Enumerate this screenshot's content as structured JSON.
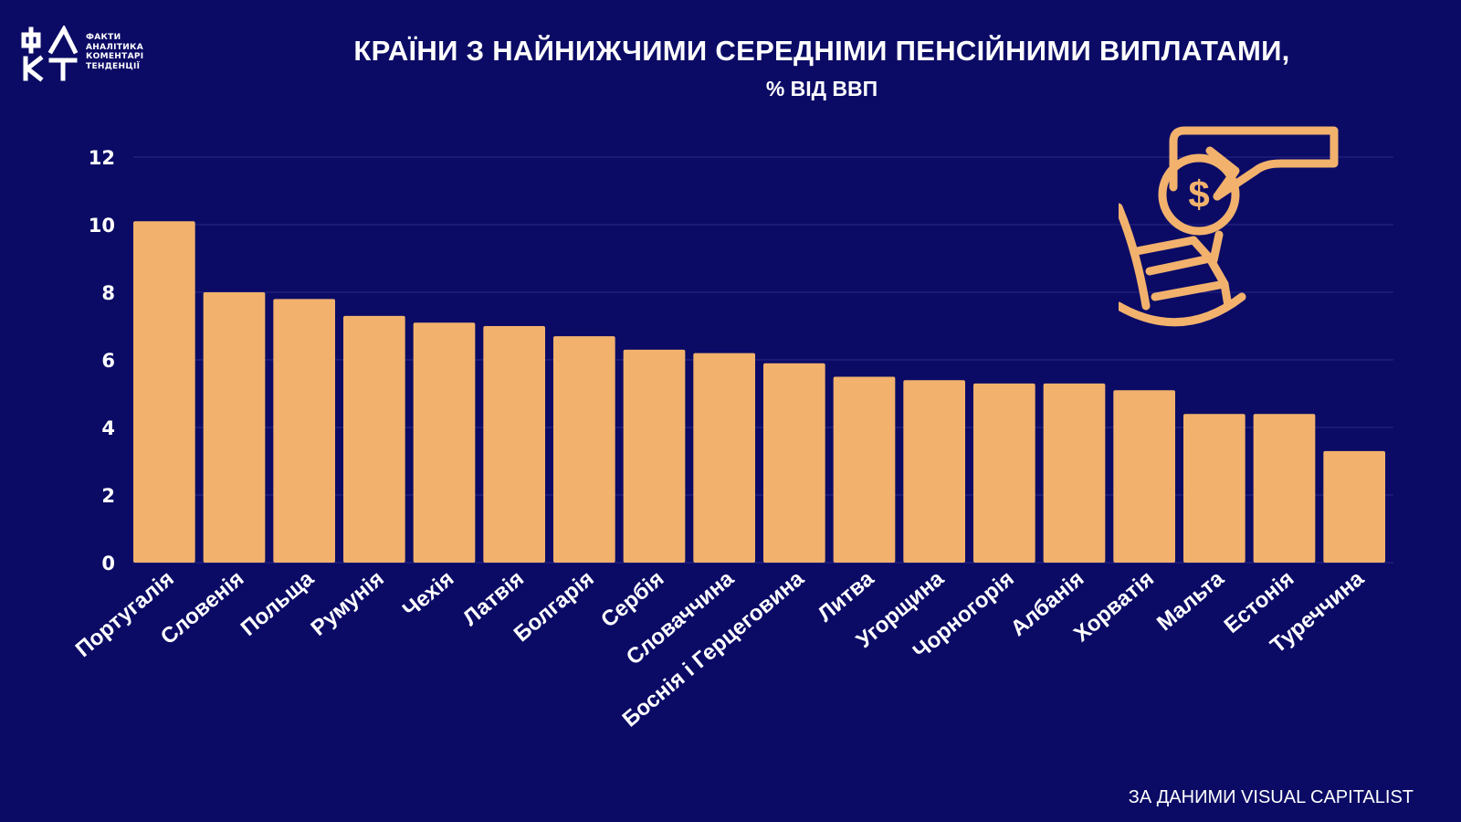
{
  "logo": {
    "mark": "ФАКТ",
    "words": [
      "ФАКТИ",
      "АНАЛІТИКА",
      "КОМЕНТАРІ",
      "ТЕНДЕНЦІЇ"
    ]
  },
  "header": {
    "title": "КРАЇНИ З НАЙНИЖЧИМИ СЕРЕДНІМИ ПЕНСІЙНИМИ ВИПЛАТАМИ,",
    "subtitle": "% ВІД ВВП"
  },
  "footer": {
    "source": "ЗА ДАНИМИ VISUAL CAPITALIST"
  },
  "decoration": {
    "icon": "pension-piggy-chair-icon",
    "coin_symbol": "$"
  },
  "colors": {
    "background": "#0b0b66",
    "bar": "#f2b26d",
    "text": "#ffffff",
    "grid": "#2a2a85"
  },
  "chart_data": {
    "type": "bar",
    "title": "КРАЇНИ З НАЙНИЖЧИМИ СЕРЕДНІМИ ПЕНСІЙНИМИ ВИПЛАТАМИ,",
    "subtitle": "% ВІД ВВП",
    "xlabel": "",
    "ylabel": "",
    "ylim": [
      0,
      12
    ],
    "yticks": [
      0,
      2,
      4,
      6,
      8,
      10,
      12
    ],
    "grid": true,
    "categories": [
      "Португалія",
      "Словенія",
      "Польща",
      "Румунія",
      "Чехія",
      "Латвія",
      "Болгарія",
      "Сербія",
      "Словаччина",
      "Боснія і Герцеговина",
      "Литва",
      "Угорщина",
      "Чорногорія",
      "Албанія",
      "Хорватія",
      "Мальта",
      "Естонія",
      "Туреччина"
    ],
    "values": [
      10.1,
      8.0,
      7.8,
      7.3,
      7.1,
      7.0,
      6.7,
      6.3,
      6.2,
      5.9,
      5.5,
      5.4,
      5.3,
      5.3,
      5.1,
      4.4,
      4.4,
      3.3
    ]
  }
}
